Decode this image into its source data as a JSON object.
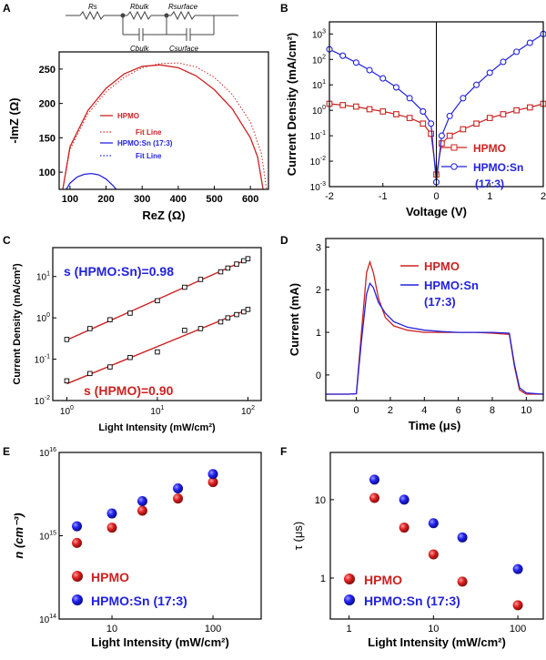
{
  "colors": {
    "red": "#cc2222",
    "blue": "#2222dd",
    "black": "#000000",
    "dotred": "#cc2222"
  },
  "panel_labels": [
    "A",
    "B",
    "C",
    "D",
    "E",
    "F"
  ],
  "chart_data": [
    {
      "panel": "A",
      "type": "line",
      "xlabel": "ReZ (Ω)",
      "ylabel": "-ImZ (Ω)",
      "xticks": [
        100,
        200,
        300,
        400,
        500,
        600
      ],
      "yticks": [
        100,
        150,
        200,
        250
      ],
      "xlim": [
        70,
        650
      ],
      "ylim": [
        75,
        275
      ],
      "circuit_labels": [
        "Rs",
        "Rbulk",
        "Rsurface",
        "Cbulk",
        "Csurface"
      ],
      "legend": [
        "HPMO",
        "Fit Line",
        "HPMO:Sn (17:3)",
        "Fit Line"
      ],
      "series": [
        {
          "name": "HPMO",
          "color": "red",
          "style": "solid",
          "x": [
            80,
            100,
            150,
            200,
            250,
            300,
            350,
            400,
            450,
            500,
            550,
            600,
            620,
            635
          ],
          "y": [
            75,
            137,
            190,
            222,
            243,
            254,
            256,
            252,
            240,
            220,
            192,
            150,
            122,
            75
          ]
        },
        {
          "name": "Fit Line",
          "color": "red",
          "style": "dotted",
          "x": [
            80,
            100,
            150,
            200,
            250,
            300,
            350,
            400,
            450,
            500,
            550,
            600,
            630,
            645
          ],
          "y": [
            75,
            133,
            185,
            217,
            238,
            252,
            258,
            259,
            253,
            238,
            213,
            173,
            128,
            75
          ]
        },
        {
          "name": "HPMO:Sn (17:3)",
          "color": "blue",
          "style": "solid",
          "x": [
            90,
            100,
            120,
            140,
            160,
            180,
            200,
            220,
            228
          ],
          "y": [
            75,
            84,
            93,
            97,
            98,
            96,
            90,
            80,
            75
          ]
        }
      ]
    },
    {
      "panel": "B",
      "type": "line",
      "xlabel": "Voltage (V)",
      "ylabel": "Current Density (mA/cm²)",
      "xticks": [
        "-2",
        "-1",
        "0",
        "1",
        "2"
      ],
      "ytick_exponents": [
        -3,
        -2,
        -1,
        0,
        1,
        2,
        3
      ],
      "xlim": [
        -2,
        2
      ],
      "ylim": [
        0.001,
        3000
      ],
      "legend": [
        "HPMO",
        "HPMO:Sn",
        "(17:3)"
      ],
      "series": [
        {
          "name": "HPMO",
          "color": "red",
          "marker": "square",
          "x": [
            -2,
            -1.75,
            -1.5,
            -1.25,
            -1,
            -0.75,
            -0.5,
            -0.25,
            -0.1,
            0,
            0.1,
            0.25,
            0.5,
            0.75,
            1,
            1.25,
            1.5,
            1.75,
            2
          ],
          "y": [
            1.8,
            1.6,
            1.4,
            1.1,
            0.9,
            0.7,
            0.5,
            0.3,
            0.12,
            0.003,
            0.05,
            0.1,
            0.18,
            0.3,
            0.5,
            0.7,
            1.0,
            1.3,
            1.8
          ]
        },
        {
          "name": "HPMO:Sn",
          "color": "blue",
          "marker": "circle",
          "x": [
            -2,
            -1.75,
            -1.5,
            -1.25,
            -1,
            -0.75,
            -0.5,
            -0.25,
            -0.1,
            0,
            0.1,
            0.25,
            0.5,
            0.75,
            1,
            1.25,
            1.5,
            1.75,
            2
          ],
          "y": [
            250,
            140,
            75,
            38,
            18,
            8,
            3,
            0.9,
            0.3,
            0.0015,
            0.1,
            0.6,
            3,
            10,
            30,
            80,
            200,
            450,
            1000
          ]
        }
      ]
    },
    {
      "panel": "C",
      "type": "scatter",
      "xlabel": "Light Intensity (mW/cm²)",
      "ylabel": "Current Density (mA/cm²)",
      "xtick_exponents": [
        0,
        1,
        2
      ],
      "ytick_exponents": [
        -2,
        -1,
        0,
        1
      ],
      "xlim": [
        0.7,
        140
      ],
      "ylim": [
        0.01,
        50
      ],
      "annotations": [
        "s (HPMO:Sn)=0.98",
        "s (HPMO)=0.90"
      ],
      "series": [
        {
          "name": "HPMO:Sn",
          "marker": "square",
          "fit_slope": 0.98,
          "x": [
            1,
            1.8,
            3,
            5,
            10,
            20,
            30,
            50,
            60,
            75,
            90,
            100
          ],
          "y": [
            0.3,
            0.55,
            0.9,
            1.3,
            2.6,
            5.5,
            8.5,
            13,
            16,
            20,
            24,
            27
          ]
        },
        {
          "name": "HPMO",
          "marker": "square",
          "fit_slope": 0.9,
          "x": [
            1,
            1.8,
            3,
            5,
            10,
            20,
            30,
            50,
            60,
            75,
            90,
            100
          ],
          "y": [
            0.03,
            0.045,
            0.065,
            0.11,
            0.15,
            0.5,
            0.55,
            0.8,
            1.0,
            1.2,
            1.4,
            1.6
          ]
        }
      ]
    },
    {
      "panel": "D",
      "type": "line",
      "xlabel": "Time (μs)",
      "ylabel": "Current (mA)",
      "xticks": [
        0,
        2,
        4,
        6,
        8,
        10
      ],
      "yticks": [
        0,
        1,
        2,
        3
      ],
      "xlim": [
        -1.8,
        11
      ],
      "ylim": [
        -0.6,
        3.2
      ],
      "legend": [
        "HPMO",
        "HPMO:Sn",
        "(17:3)"
      ],
      "series": [
        {
          "name": "HPMO",
          "color": "red",
          "x": [
            -1.8,
            -0.5,
            0,
            0.3,
            0.6,
            0.8,
            1.0,
            1.3,
            1.7,
            2.2,
            3,
            4,
            5,
            6,
            7,
            8,
            9,
            9.3,
            9.6,
            10,
            11
          ],
          "y": [
            -0.45,
            -0.45,
            -0.44,
            1.0,
            2.4,
            2.65,
            2.4,
            1.8,
            1.35,
            1.15,
            1.05,
            1.0,
            1.0,
            1.0,
            1.0,
            0.98,
            0.95,
            0.2,
            -0.35,
            -0.45,
            -0.45
          ]
        },
        {
          "name": "HPMO:Sn",
          "color": "blue",
          "x": [
            -1.8,
            -0.5,
            0,
            0.3,
            0.6,
            0.8,
            1.0,
            1.3,
            1.7,
            2.2,
            3,
            4,
            5,
            6,
            7,
            8,
            9,
            9.3,
            9.6,
            10,
            11
          ],
          "y": [
            -0.45,
            -0.45,
            -0.44,
            0.8,
            1.9,
            2.15,
            2.05,
            1.7,
            1.45,
            1.25,
            1.12,
            1.05,
            1.02,
            1.0,
            1.0,
            1.0,
            0.98,
            0.25,
            -0.3,
            -0.42,
            -0.45
          ]
        }
      ]
    },
    {
      "panel": "E",
      "type": "scatter",
      "xlabel": "Light Intensity (mW/cm²)",
      "ylabel": "n (cm⁻³)",
      "xticks": [
        "10",
        "100"
      ],
      "ytick_exponents": [
        14,
        15,
        16
      ],
      "xlim": [
        3,
        300
      ],
      "ylim": [
        100000000000000.0,
        1e+16
      ],
      "legend": [
        "HPMO",
        "HPMO:Sn (17:3)"
      ],
      "series": [
        {
          "name": "HPMO",
          "color": "red",
          "x": [
            4.5,
            10,
            20,
            45,
            100
          ],
          "y": [
            820000000000000.0,
            1250000000000000.0,
            2000000000000000.0,
            2800000000000000.0,
            4400000000000000.0
          ]
        },
        {
          "name": "HPMO:Sn (17:3)",
          "color": "blue",
          "x": [
            4.5,
            10,
            20,
            45,
            100
          ],
          "y": [
            1300000000000000.0,
            1850000000000000.0,
            2600000000000000.0,
            3700000000000000.0,
            5500000000000000.0
          ]
        }
      ]
    },
    {
      "panel": "F",
      "type": "scatter",
      "xlabel": "Light Intensity (mW/cm²)",
      "ylabel": "τ (μs)",
      "xticks": [
        "1",
        "10",
        "100"
      ],
      "yticks": [
        "1",
        "10"
      ],
      "xlim": [
        0.6,
        200
      ],
      "ylim": [
        0.3,
        40
      ],
      "legend": [
        "HPMO",
        "HPMO:Sn (17:3)"
      ],
      "series": [
        {
          "name": "HPMO",
          "color": "red",
          "x": [
            2,
            4.5,
            10,
            22,
            100
          ],
          "y": [
            10.5,
            4.4,
            2.0,
            0.9,
            0.45
          ]
        },
        {
          "name": "HPMO:Sn (17:3)",
          "color": "blue",
          "x": [
            2,
            4.5,
            10,
            22,
            100
          ],
          "y": [
            18,
            10,
            5.0,
            3.3,
            1.3
          ]
        }
      ]
    }
  ]
}
